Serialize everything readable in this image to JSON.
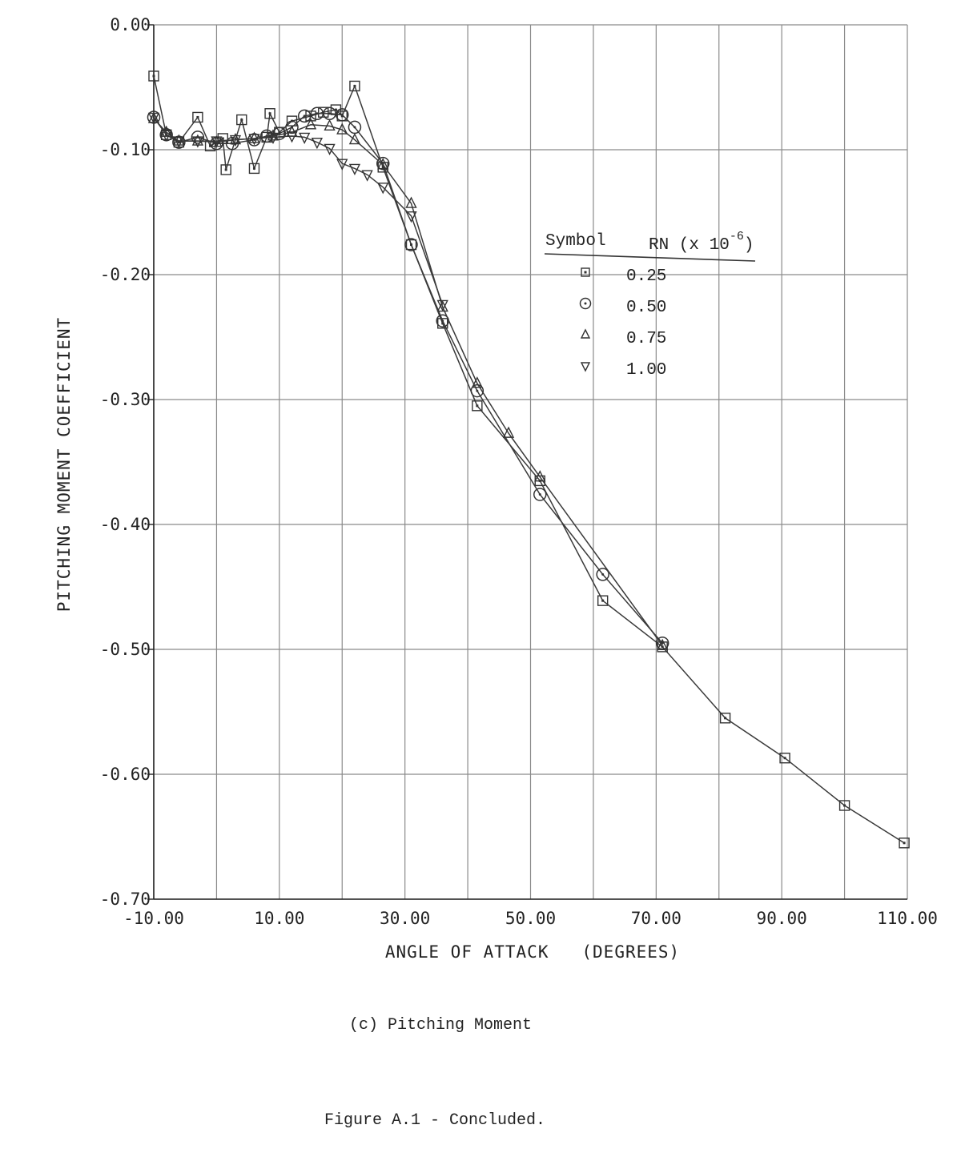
{
  "chart_data": {
    "type": "line",
    "xlabel": "ANGLE OF ATTACK   (DEGREES)",
    "ylabel": "PITCHING MOMENT COEFFICIENT",
    "xlim": [
      -10,
      110
    ],
    "ylim": [
      -0.7,
      0.0
    ],
    "x_ticks": [
      "-10.00",
      "10.00",
      "30.00",
      "50.00",
      "70.00",
      "90.00",
      "110.00"
    ],
    "y_ticks": [
      "0.00",
      "-0.10",
      "-0.20",
      "-0.30",
      "-0.40",
      "-0.50",
      "-0.60",
      "-0.70"
    ],
    "grid": true,
    "legend": {
      "placement": "upper-right",
      "symbol_header": "Symbol",
      "rn_header": "RN (x 10",
      "rn_exp": "-6",
      "rn_close": ")",
      "entries": [
        {
          "marker": "square",
          "label": "0.25"
        },
        {
          "marker": "circle",
          "label": "0.50"
        },
        {
          "marker": "triangle-up",
          "label": "0.75"
        },
        {
          "marker": "triangle-down",
          "label": "1.00"
        }
      ]
    },
    "series": [
      {
        "name": "0.25",
        "marker": "square",
        "points": [
          [
            -10,
            -0.041
          ],
          [
            -8,
            -0.088
          ],
          [
            -6,
            -0.094
          ],
          [
            -3,
            -0.074
          ],
          [
            -1,
            -0.097
          ],
          [
            1,
            -0.091
          ],
          [
            1.5,
            -0.116
          ],
          [
            4,
            -0.076
          ],
          [
            6,
            -0.115
          ],
          [
            8,
            -0.09
          ],
          [
            8.5,
            -0.071
          ],
          [
            10,
            -0.086
          ],
          [
            12,
            -0.077
          ],
          [
            15,
            -0.073
          ],
          [
            17,
            -0.07
          ],
          [
            19,
            -0.068
          ],
          [
            20,
            -0.073
          ],
          [
            22,
            -0.049
          ],
          [
            26.5,
            -0.114
          ],
          [
            31,
            -0.176
          ],
          [
            36,
            -0.239
          ],
          [
            41.5,
            -0.305
          ],
          [
            51.5,
            -0.365
          ],
          [
            61.5,
            -0.461
          ],
          [
            71,
            -0.498
          ],
          [
            81,
            -0.555
          ],
          [
            90.5,
            -0.587
          ],
          [
            100,
            -0.625
          ],
          [
            109.5,
            -0.655
          ]
        ]
      },
      {
        "name": "0.50",
        "marker": "circle",
        "points": [
          [
            -10,
            -0.074
          ],
          [
            -8,
            -0.088
          ],
          [
            -6,
            -0.094
          ],
          [
            -3,
            -0.09
          ],
          [
            0,
            -0.095
          ],
          [
            2.5,
            -0.095
          ],
          [
            6,
            -0.092
          ],
          [
            8,
            -0.089
          ],
          [
            10,
            -0.087
          ],
          [
            12,
            -0.082
          ],
          [
            14,
            -0.073
          ],
          [
            16,
            -0.071
          ],
          [
            18,
            -0.071
          ],
          [
            20,
            -0.072
          ],
          [
            22,
            -0.082
          ],
          [
            26.5,
            -0.111
          ],
          [
            31,
            -0.176
          ],
          [
            36,
            -0.237
          ],
          [
            41.5,
            -0.293
          ],
          [
            51.5,
            -0.376
          ],
          [
            61.5,
            -0.44
          ],
          [
            71,
            -0.495
          ]
        ]
      },
      {
        "name": "0.75",
        "marker": "triangle-up",
        "points": [
          [
            -10,
            -0.075
          ],
          [
            -8,
            -0.086
          ],
          [
            -6,
            -0.093
          ],
          [
            -3,
            -0.093
          ],
          [
            0,
            -0.094
          ],
          [
            3,
            -0.092
          ],
          [
            6,
            -0.091
          ],
          [
            9,
            -0.089
          ],
          [
            12,
            -0.086
          ],
          [
            15,
            -0.08
          ],
          [
            18,
            -0.081
          ],
          [
            20,
            -0.084
          ],
          [
            22,
            -0.092
          ],
          [
            26.5,
            -0.112
          ],
          [
            31,
            -0.143
          ],
          [
            36,
            -0.226
          ],
          [
            41.5,
            -0.287
          ],
          [
            46.5,
            -0.327
          ],
          [
            51.5,
            -0.362
          ],
          [
            71,
            -0.497
          ]
        ]
      },
      {
        "name": "1.00",
        "marker": "triangle-down",
        "points": [
          [
            -10,
            -0.074
          ],
          [
            -8,
            -0.088
          ],
          [
            -6,
            -0.093
          ],
          [
            -3,
            -0.093
          ],
          [
            0,
            -0.093
          ],
          [
            3,
            -0.092
          ],
          [
            6,
            -0.091
          ],
          [
            9,
            -0.09
          ],
          [
            12,
            -0.089
          ],
          [
            14,
            -0.09
          ],
          [
            16,
            -0.094
          ],
          [
            18,
            -0.099
          ],
          [
            20,
            -0.111
          ],
          [
            22,
            -0.115
          ],
          [
            24,
            -0.12
          ],
          [
            26.5,
            -0.13
          ],
          [
            31,
            -0.153
          ],
          [
            36,
            -0.224
          ]
        ]
      }
    ]
  },
  "captions": {
    "subcaption": "(c) Pitching Moment",
    "figure_caption": "Figure A.1 - Concluded."
  }
}
